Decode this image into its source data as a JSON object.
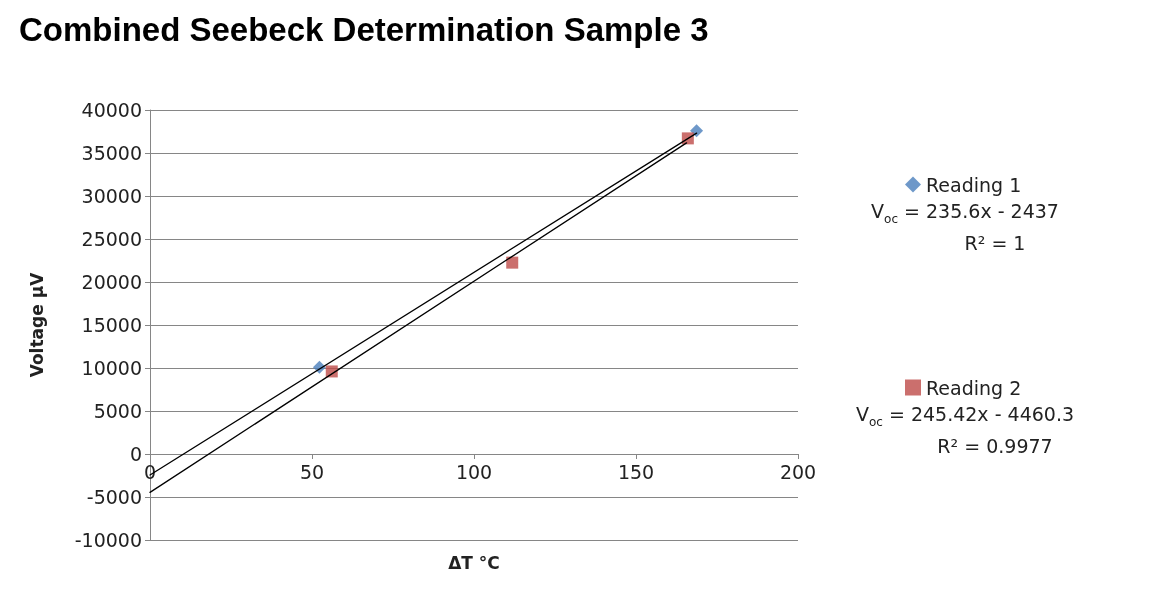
{
  "chart_data": {
    "type": "scatter",
    "title": "Combined Seebeck Determination Sample 3",
    "xlabel": "ΔT °C",
    "ylabel": "Voltage µV",
    "series": [
      {
        "name": "Reading 1",
        "color": "#4a7ebb",
        "marker": "diamond",
        "x": [
          52.3,
          168.7
        ],
        "values": [
          10100,
          37600
        ]
      },
      {
        "name": "Reading 2",
        "color": "#be4b48",
        "marker": "square",
        "x": [
          56.1,
          111.8,
          166
        ],
        "values": [
          9600,
          22250,
          36700
        ]
      },
      {
        "type": "line",
        "color": "#000000",
        "marker": "none",
        "x": [
          0,
          168.7
        ],
        "values": [
          -2437,
          37309
        ]
      },
      {
        "type": "line",
        "color": "#000000",
        "marker": "none",
        "x": [
          0,
          165.6
        ],
        "values": [
          -4460,
          36181
        ]
      }
    ],
    "xlim": [
      0,
      200
    ],
    "xticks": [
      0,
      50,
      100,
      150,
      200
    ],
    "ylim": [
      -10000,
      40000
    ],
    "yticks": [
      -10000,
      -5000,
      0,
      5000,
      10000,
      15000,
      20000,
      25000,
      30000,
      35000,
      40000
    ],
    "grid": "y",
    "legend": "right",
    "annotations": [
      "V$_{oc}$ = 235.6x - 2437",
      "R² = 1",
      "V$_{oc}$ = 245.42x - 4460.3",
      "R² = 0.9977"
    ]
  }
}
